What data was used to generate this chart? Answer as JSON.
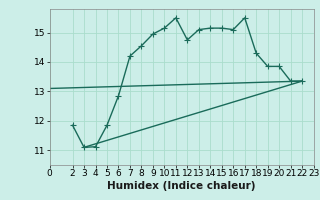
{
  "title": "",
  "xlabel": "Humidex (Indice chaleur)",
  "background_color": "#cceee8",
  "grid_color": "#aaddcc",
  "line_color": "#1a6b5a",
  "xlim": [
    0,
    23
  ],
  "ylim": [
    10.5,
    15.8
  ],
  "yticks": [
    11,
    12,
    13,
    14,
    15
  ],
  "xticks": [
    0,
    2,
    3,
    4,
    5,
    6,
    7,
    8,
    9,
    10,
    11,
    12,
    13,
    14,
    15,
    16,
    17,
    18,
    19,
    20,
    21,
    22,
    23
  ],
  "line1_x": [
    2,
    3,
    4,
    5,
    6,
    7,
    8,
    9,
    10,
    11,
    12,
    13,
    14,
    15,
    16,
    17,
    18,
    19,
    20,
    21,
    22
  ],
  "line1_y": [
    11.85,
    11.1,
    11.12,
    11.85,
    12.85,
    14.2,
    14.55,
    14.95,
    15.15,
    15.5,
    14.75,
    15.1,
    15.15,
    15.15,
    15.1,
    15.5,
    14.3,
    13.85,
    13.85,
    13.35,
    13.35
  ],
  "line2_x": [
    0,
    22
  ],
  "line2_y": [
    13.1,
    13.35
  ],
  "line3_x": [
    3,
    22
  ],
  "line3_y": [
    11.1,
    13.35
  ],
  "marker": "+",
  "markersize": 4,
  "linewidth": 1.0,
  "tick_fontsize": 6.5,
  "xlabel_fontsize": 7.5
}
